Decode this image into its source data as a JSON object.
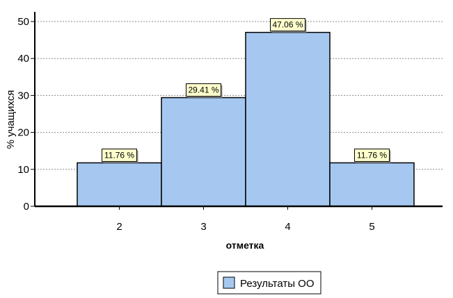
{
  "chart_data": {
    "type": "bar",
    "categories": [
      "2",
      "3",
      "4",
      "5"
    ],
    "series": [
      {
        "name": "Результаты ОО",
        "values": [
          11.76,
          29.41,
          47.06,
          11.76
        ]
      }
    ],
    "data_labels": [
      "11.76 %",
      "29.41 %",
      "47.06 %",
      "11.76 %"
    ],
    "title": "",
    "xlabel": "отметка",
    "ylabel": "% учащихся",
    "ylim": [
      0,
      50
    ],
    "yticks": [
      0,
      10,
      20,
      30,
      40,
      50
    ],
    "grid": true,
    "legend_position": "bottom",
    "colors": {
      "bar_fill": "#a6c8f0",
      "bar_stroke": "#000000",
      "label_fill": "#ffffcc",
      "grid": "#888888"
    }
  }
}
